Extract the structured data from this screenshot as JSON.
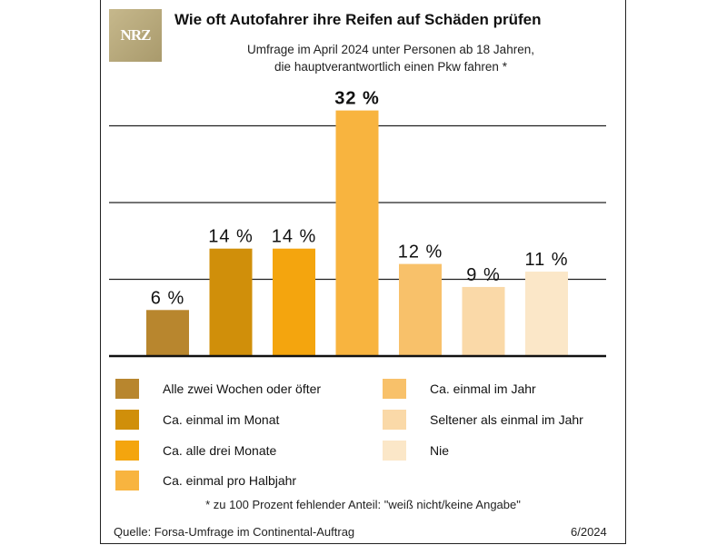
{
  "header": {
    "logo_text": "NRZ",
    "title": "Wie oft Autofahrer ihre Reifen auf Schäden prüfen",
    "subtitle_line1": "Umfrage im April 2024 unter Personen ab  18 Jahren,",
    "subtitle_line2": "die hauptverantwortlich einen Pkw fahren *"
  },
  "chart_data": {
    "type": "bar",
    "title": "Wie oft Autofahrer ihre Reifen auf Schäden prüfen",
    "categories": [
      "Alle zwei Wochen oder öfter",
      "Ca. einmal im Monat",
      "Ca. alle drei Monate",
      "Ca. einmal pro Halbjahr",
      "Ca. einmal im Jahr",
      "Seltener als einmal im Jahr",
      "Nie"
    ],
    "values": [
      6,
      14,
      14,
      32,
      12,
      9,
      11
    ],
    "labels": [
      "6 %",
      "14 %",
      "14 %",
      "32 %",
      "12 %",
      "9 %",
      "11 %"
    ],
    "colors": [
      "#b8862e",
      "#d08f0a",
      "#f4a50e",
      "#f8b43f",
      "#f8c16a",
      "#fad9a8",
      "#fbe7c8"
    ],
    "ylim": [
      0,
      30
    ],
    "gridlines": [
      10,
      20,
      30
    ],
    "unit": "%"
  },
  "footnote": "* zu 100 Prozent fehlender Anteil: \"weiß nicht/keine Angabe\"",
  "source": "Quelle: Forsa-Umfrage im Continental-Auftrag",
  "date": "6/2024"
}
